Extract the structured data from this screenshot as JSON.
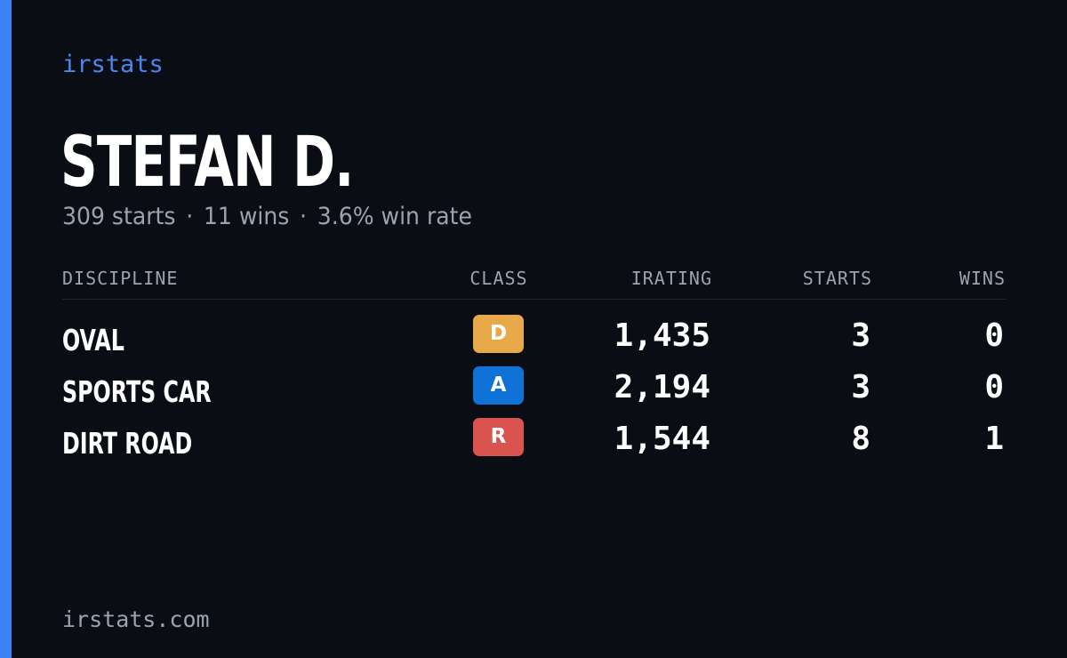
{
  "brand": "irstats",
  "driver": {
    "name": "STEFAN D.",
    "starts_text": "309 starts",
    "wins_text": "11 wins",
    "win_rate_text": "3.6% win rate",
    "separator": "·"
  },
  "table": {
    "headers": {
      "discipline": "DISCIPLINE",
      "class": "CLASS",
      "irating": "IRATING",
      "starts": "STARTS",
      "wins": "WINS"
    },
    "rows": [
      {
        "discipline": "OVAL",
        "class": "D",
        "class_color": "#e8a94b",
        "irating": "1,435",
        "starts": "3",
        "wins": "0"
      },
      {
        "discipline": "SPORTS CAR",
        "class": "A",
        "class_color": "#0f72d6",
        "irating": "2,194",
        "starts": "3",
        "wins": "0"
      },
      {
        "discipline": "DIRT ROAD",
        "class": "R",
        "class_color": "#d9534f",
        "irating": "1,544",
        "starts": "8",
        "wins": "1"
      }
    ]
  },
  "footer": "irstats.com",
  "colors": {
    "background": "#0a0d14",
    "accent": "#3b82f6",
    "muted": "#9ca3b0"
  }
}
